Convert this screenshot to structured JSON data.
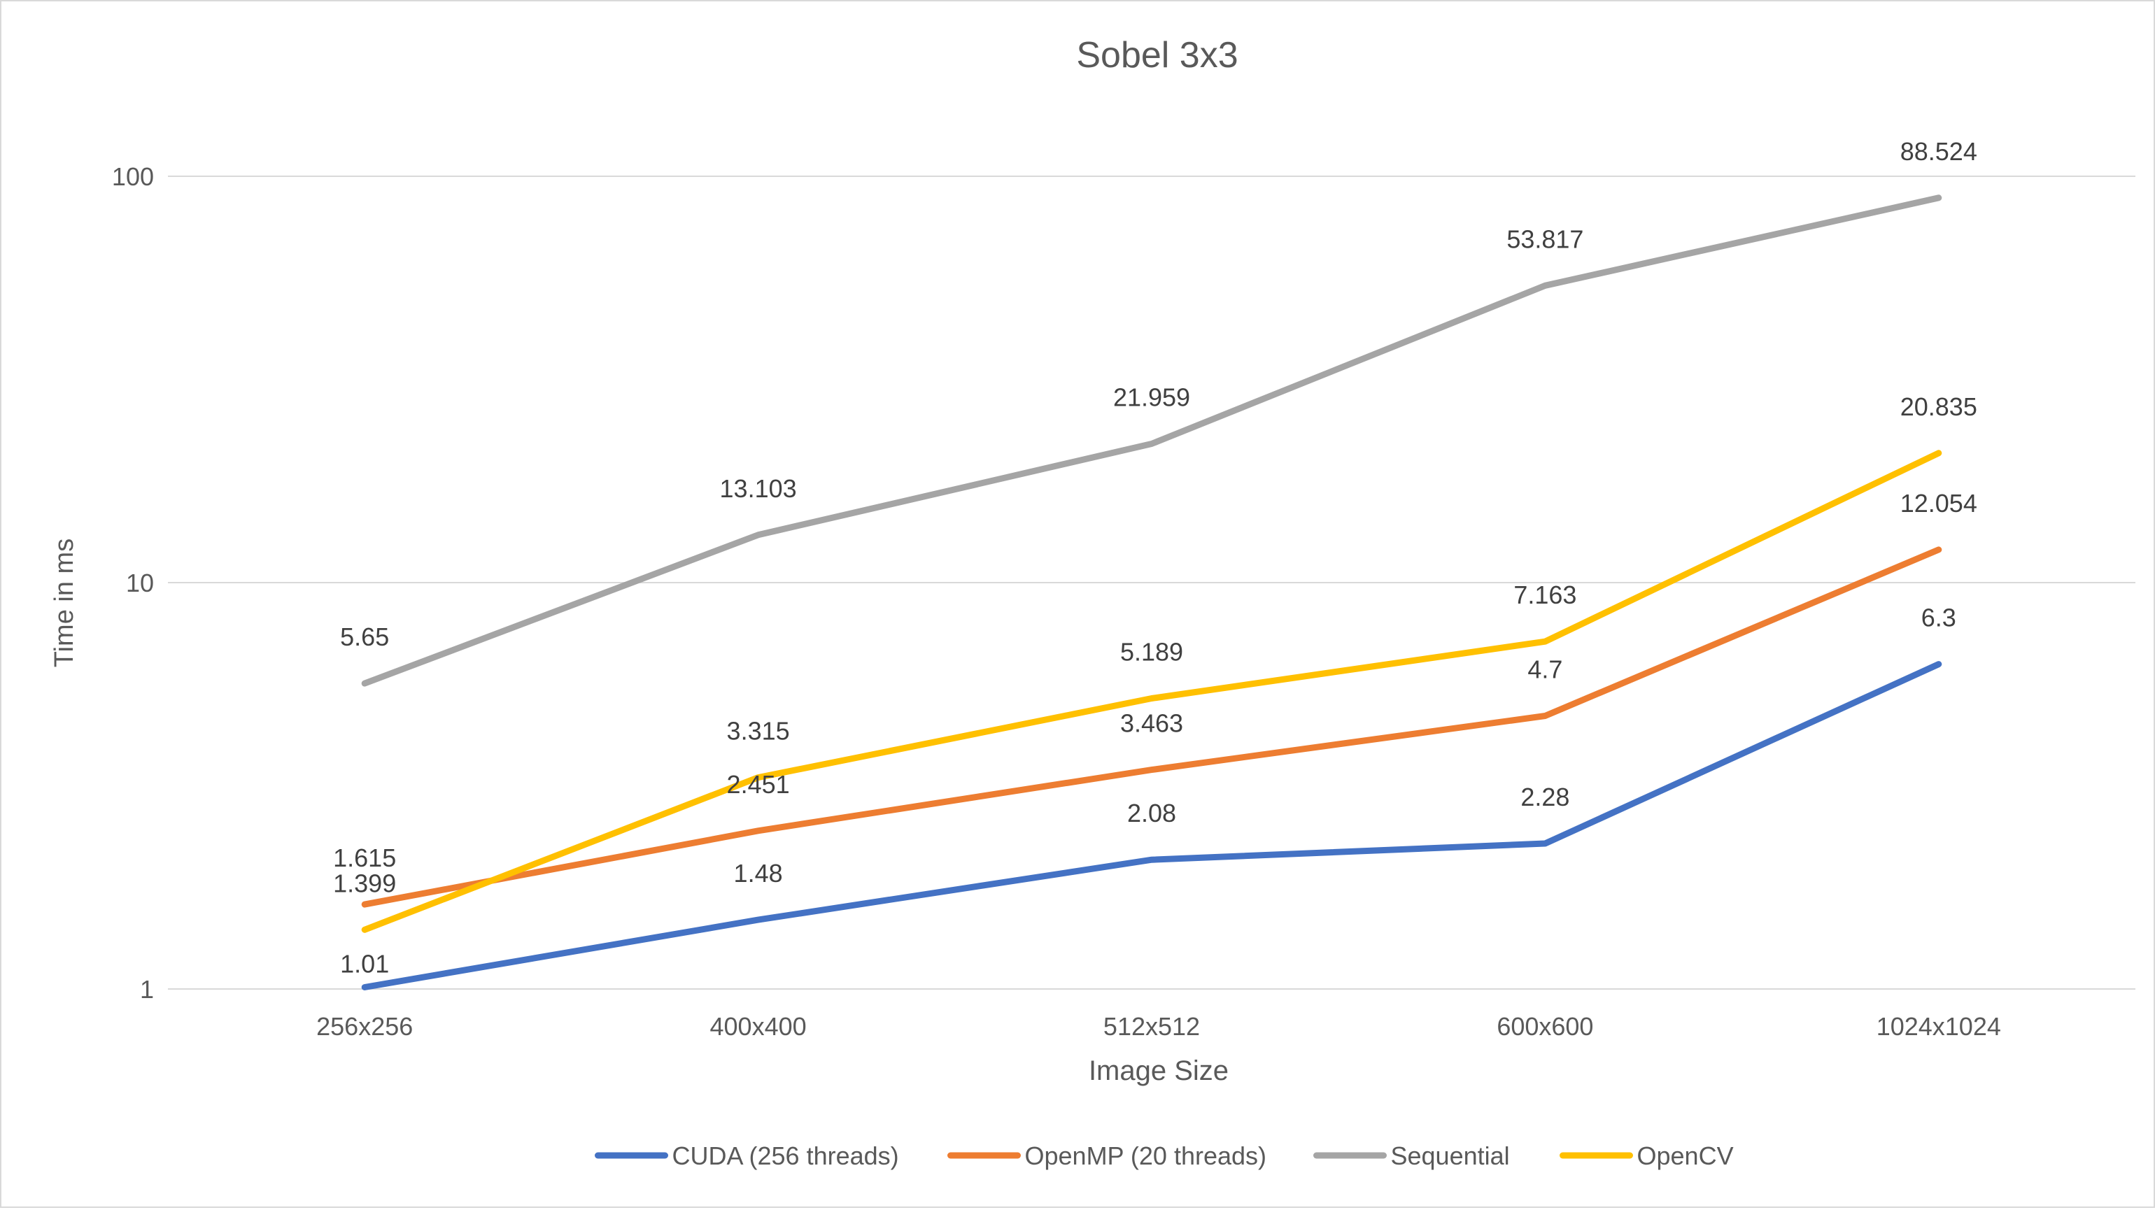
{
  "chart_data": {
    "type": "line",
    "title": "Sobel 3x3",
    "xlabel": "Image Size",
    "ylabel": "Time in ms",
    "yscale": "log",
    "ylim": [
      1,
      100
    ],
    "y_ticks": [
      {
        "value": 1,
        "label": "1"
      },
      {
        "value": 10,
        "label": "10"
      },
      {
        "value": 100,
        "label": "100"
      }
    ],
    "grid": true,
    "legend_position": "bottom",
    "categories": [
      "256x256",
      "400x400",
      "512x512",
      "600x600",
      "1024x1024"
    ],
    "series": [
      {
        "name": "CUDA (256 threads)",
        "color": "#4472c4",
        "values": [
          1.01,
          1.48,
          2.08,
          2.28,
          6.3
        ],
        "labels": [
          "1.01",
          "1.48",
          "2.08",
          "2.28",
          "6.3"
        ]
      },
      {
        "name": "OpenMP (20 threads)",
        "color": "#ed7d31",
        "values": [
          1.615,
          2.451,
          3.463,
          4.7,
          12.054
        ],
        "labels": [
          "1.615",
          "2.451",
          "3.463",
          "4.7",
          "12.054"
        ]
      },
      {
        "name": "Sequential",
        "color": "#a5a5a5",
        "values": [
          5.65,
          13.103,
          21.959,
          53.817,
          88.524
        ],
        "labels": [
          "5.65",
          "13.103",
          "21.959",
          "53.817",
          "88.524"
        ]
      },
      {
        "name": "OpenCV",
        "color": "#ffc000",
        "values": [
          1.399,
          3.315,
          5.189,
          7.163,
          20.835
        ],
        "labels": [
          "1.399",
          "3.315",
          "5.189",
          "7.163",
          "20.835"
        ]
      }
    ]
  }
}
